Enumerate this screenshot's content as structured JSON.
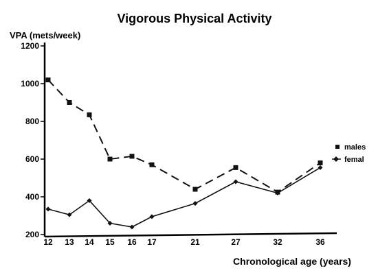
{
  "chart_data": {
    "type": "line",
    "title": "Vigorous Physical Activity",
    "ylabel": "VPA (mets/week)",
    "xlabel": "Chronological age (years)",
    "x": [
      12,
      13,
      14,
      15,
      16,
      17,
      21,
      27,
      32,
      36
    ],
    "ylim": [
      200,
      1200
    ],
    "yticks": [
      200,
      400,
      600,
      800,
      1000,
      1200
    ],
    "grid": false,
    "legend_position": "right",
    "series": [
      {
        "name": "males",
        "marker": "square",
        "line_style": "dashed",
        "values": [
          1020,
          900,
          835,
          600,
          615,
          570,
          440,
          555,
          425,
          580
        ]
      },
      {
        "name": "femal",
        "marker": "diamond",
        "line_style": "solid",
        "values": [
          335,
          305,
          380,
          260,
          240,
          295,
          365,
          480,
          420,
          555
        ]
      }
    ]
  }
}
